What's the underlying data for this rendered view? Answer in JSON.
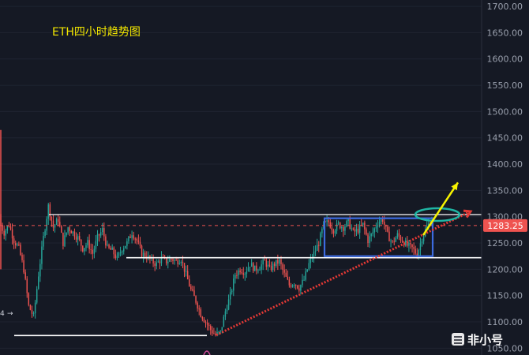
{
  "chart_data": {
    "type": "candlestick",
    "title": "ETH四小时趋势图",
    "y_ticks": [
      1050,
      1100,
      1150,
      1200,
      1250,
      1300,
      1350,
      1400,
      1450,
      1500,
      1550,
      1600,
      1650,
      1700
    ],
    "y_tick_labels": [
      "1050.00",
      "1100.00",
      "1150.00",
      "1200.00",
      "1250.00",
      "1300.00",
      "1350.00",
      "1400.00",
      "1450.00",
      "1500.00",
      "1550.00",
      "1600.00",
      "1650.00",
      "1700.00"
    ],
    "ylim": [
      1040,
      1705
    ],
    "current_price": 1283.25,
    "current_price_label": "1283.25",
    "left_edge_marks": [
      "4",
      "→"
    ],
    "levels": [
      {
        "name": "resistance",
        "value": 1304,
        "color": "#ffffff"
      },
      {
        "name": "support-mid",
        "value": 1222,
        "color": "#ffffff"
      },
      {
        "name": "support-low",
        "value": 1074,
        "color": "#ffffff"
      }
    ],
    "trend_close_path": [
      1290,
      1270,
      1285,
      1255,
      1240,
      1200,
      1130,
      1110,
      1190,
      1260,
      1320,
      1280,
      1295,
      1250,
      1280,
      1270,
      1260,
      1240,
      1250,
      1230,
      1260,
      1275,
      1240,
      1235,
      1220,
      1240,
      1250,
      1270,
      1255,
      1230,
      1225,
      1215,
      1210,
      1220,
      1215,
      1220,
      1215,
      1220,
      1190,
      1160,
      1140,
      1115,
      1100,
      1085,
      1075,
      1080,
      1120,
      1150,
      1190,
      1200,
      1195,
      1210,
      1200,
      1205,
      1215,
      1200,
      1210,
      1215,
      1190,
      1170,
      1175,
      1165,
      1180,
      1210,
      1230,
      1250,
      1285,
      1290,
      1275,
      1285,
      1280,
      1290,
      1270,
      1275,
      1285,
      1255,
      1270,
      1290,
      1295,
      1265,
      1250,
      1265,
      1255,
      1245,
      1240,
      1228,
      1260,
      1280,
      1295
    ],
    "consolidation_box": {
      "x_start_index": 66,
      "x_end_index": 88,
      "y_low": 1225,
      "y_high": 1297
    },
    "trendline": {
      "from": {
        "index": 44,
        "value": 1075
      },
      "to": {
        "index": 100,
        "value": 1310
      }
    },
    "breakout_arrow": {
      "from_value": 1265,
      "to_value": 1365
    },
    "colors": {
      "up": "#26a69a",
      "down": "#ef5350",
      "box": "#3d6be0",
      "trend": "#e53935",
      "arrow": "#f7f300",
      "ellipse": "#1fb5a3",
      "background": "#151924"
    }
  },
  "watermark": {
    "text": "非小号"
  }
}
